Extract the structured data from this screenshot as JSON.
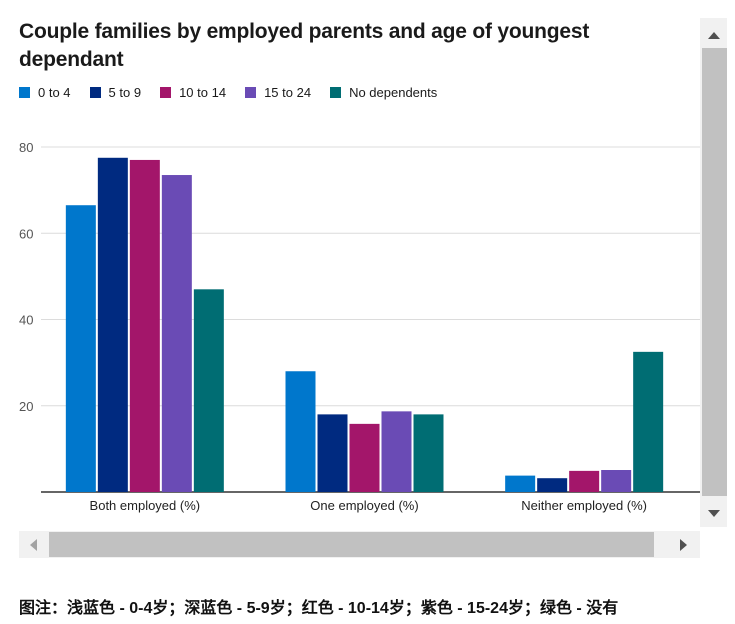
{
  "chart_data": {
    "type": "bar",
    "title": "Couple families by employed parents and age of youngest dependant",
    "categories": [
      "Both employed (%)",
      "One employed (%)",
      "Neither employed (%)"
    ],
    "series": [
      {
        "name": "0 to 4",
        "color": "#0077cc",
        "values": [
          66.5,
          28,
          3.8
        ]
      },
      {
        "name": "5 to 9",
        "color": "#002a80",
        "values": [
          77.5,
          18,
          3.2
        ]
      },
      {
        "name": "10 to 14",
        "color": "#a3166a",
        "values": [
          77,
          15.8,
          4.9
        ]
      },
      {
        "name": "15 to 24",
        "color": "#6a4bb5",
        "values": [
          73.5,
          18.7,
          5.1
        ]
      },
      {
        "name": "No dependents",
        "color": "#006d73",
        "values": [
          47,
          18,
          32.5
        ]
      }
    ],
    "yticks": [
      20,
      40,
      60,
      80
    ],
    "ylim": [
      0,
      80
    ],
    "grid": true,
    "legend_position": "top-left"
  },
  "caption": "图注：浅蓝色 - 0-4岁；深蓝色 - 5-9岁；红色 - 10-14岁；紫色 - 15-24岁；绿色 - 没有"
}
